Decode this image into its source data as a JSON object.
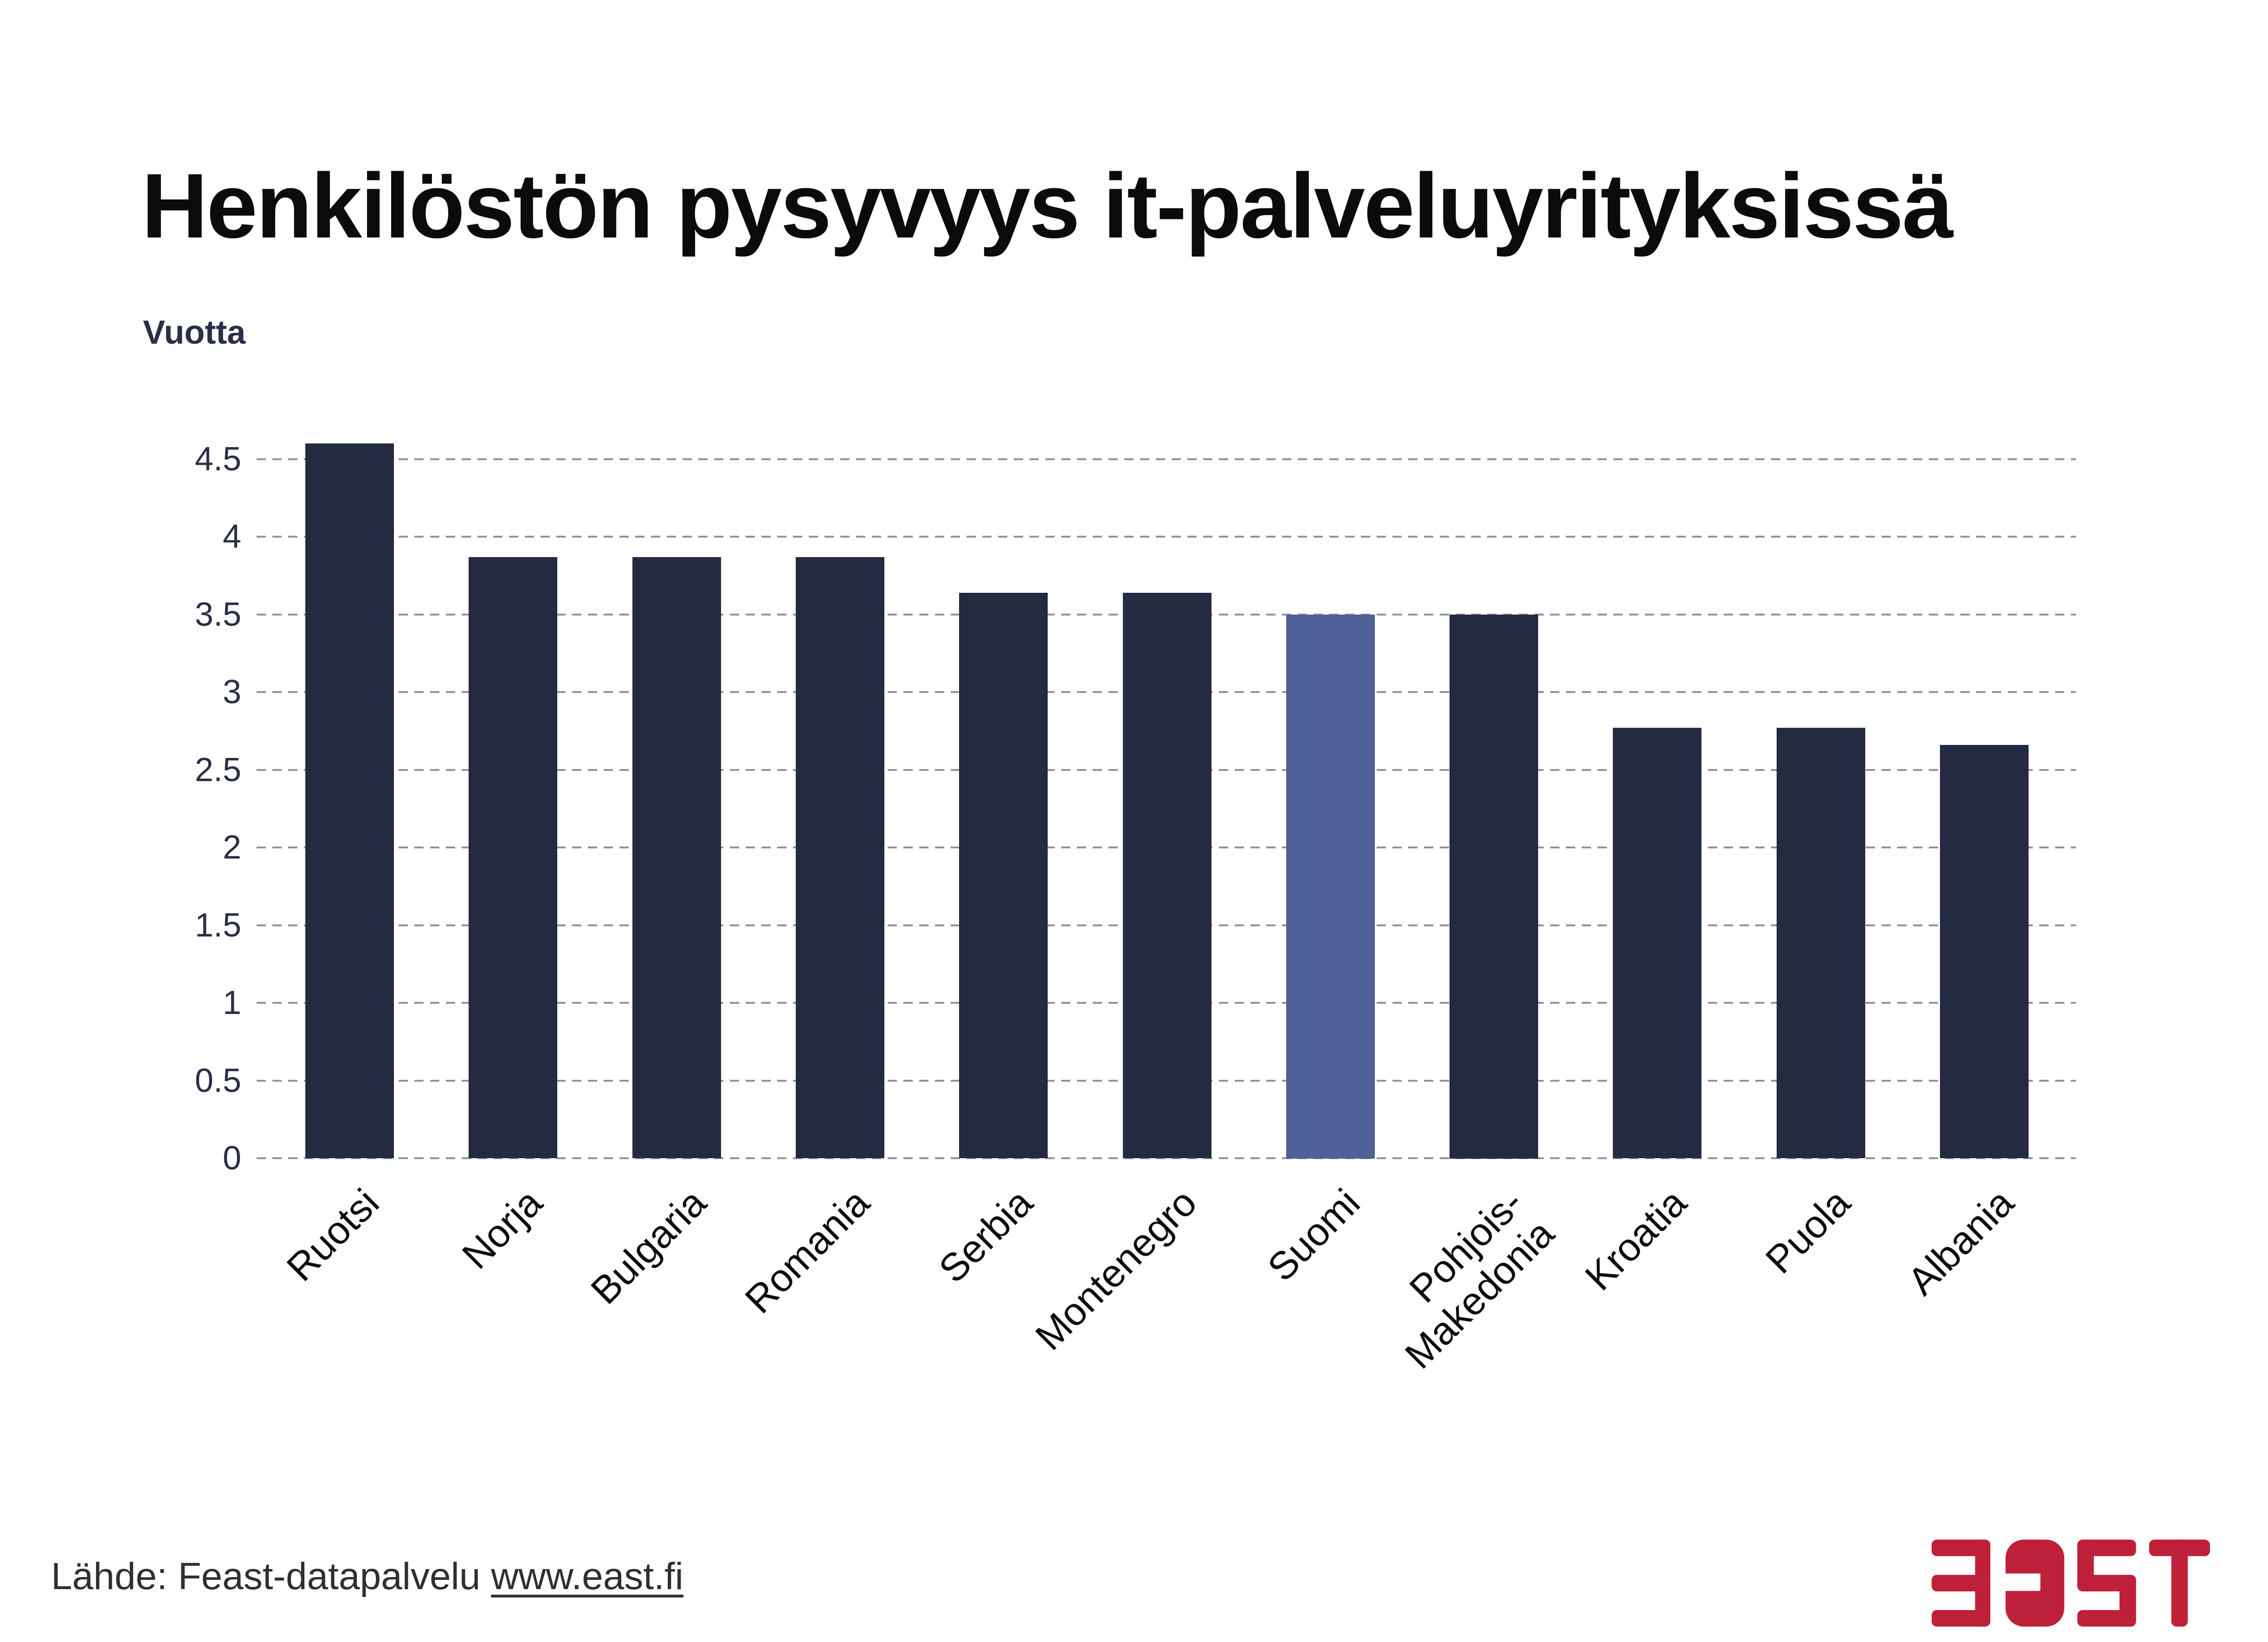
{
  "title": "Henkilöstön pysyvyys it-palveluyrityksissä",
  "chart_data": {
    "type": "bar",
    "title": "Henkilöstön pysyvyys it-palveluyrityksissä",
    "xlabel": "",
    "ylabel": "Vuotta",
    "categories": [
      "Ruotsi",
      "Norja",
      "Bulgaria",
      "Romania",
      "Serbia",
      "Montenegro",
      "Suomi",
      "Pohjois-\nMakedonia",
      "Kroatia",
      "Puola",
      "Albania"
    ],
    "values": [
      4.6,
      3.87,
      3.87,
      3.87,
      3.64,
      3.64,
      3.5,
      3.5,
      2.77,
      2.77,
      2.66
    ],
    "ylim": [
      0,
      4.75
    ],
    "yticks": [
      0,
      0.5,
      1,
      1.5,
      2,
      2.5,
      3,
      3.5,
      4,
      4.5
    ],
    "grid": "horizontal dashed gridlines",
    "legend": "none",
    "bar_color": "#242a40",
    "highlight": {
      "category": "Suomi",
      "color": "#4f5f97"
    },
    "tick_label_color": "#2a2f47",
    "gridline_color": "#8e91a1"
  },
  "source": {
    "prefix": "Lähde: Feast-datapalvelu ",
    "link": "www.east.fi"
  },
  "logo": {
    "text": "ƎasT",
    "color": "#bf2039"
  }
}
